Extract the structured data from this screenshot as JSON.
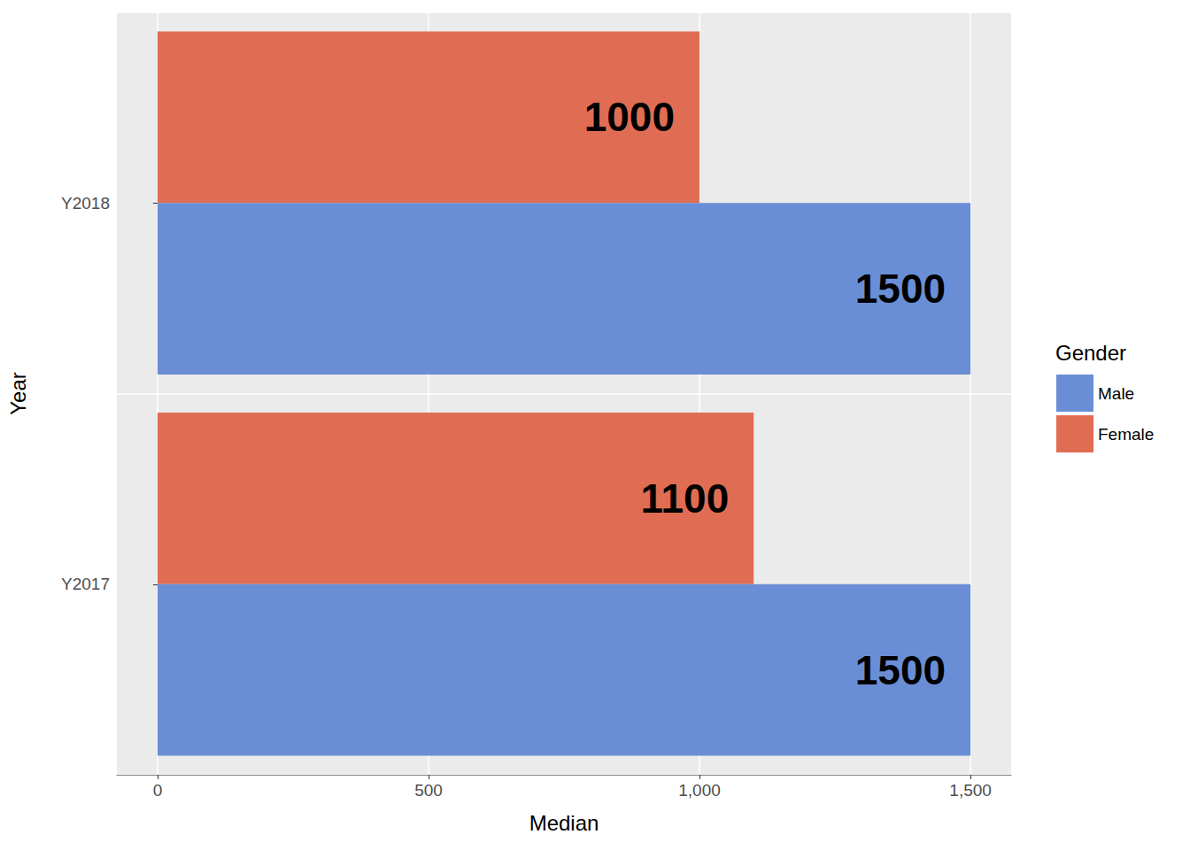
{
  "chart_data": {
    "type": "bar",
    "orientation": "horizontal",
    "x_label": "Median",
    "y_label": "Year",
    "legend_title": "Gender",
    "categories": [
      "Y2017",
      "Y2018"
    ],
    "series": [
      {
        "name": "Male",
        "color": "#6a8ed6",
        "values": [
          1500,
          1500
        ]
      },
      {
        "name": "Female",
        "color": "#e06d53",
        "values": [
          1100,
          1000
        ]
      }
    ],
    "xlim": [
      -75,
      1575
    ],
    "xticks": [
      0,
      500,
      1000,
      1500
    ],
    "grid": true,
    "legend": "right",
    "data_labels": true
  }
}
